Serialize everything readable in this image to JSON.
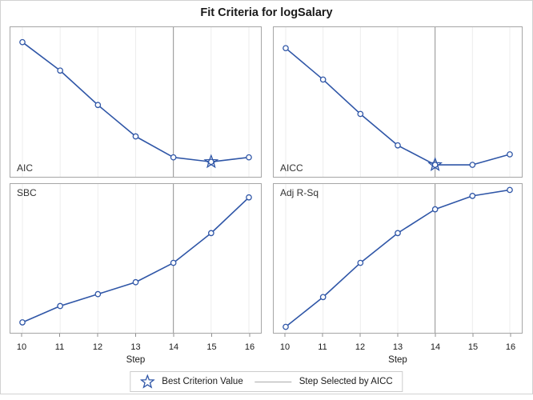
{
  "title": "Fit Criteria for logSalary",
  "colors": {
    "series_line": "#2f56a7",
    "marker_fill": "#ffffff",
    "gridline": "#ededed",
    "reference_line": "#8f8f8f",
    "panel_border": "#a6a6a6",
    "frame_border": "#d2d2d2",
    "tick": "#8f8f8f",
    "text": "#1a1a1a",
    "panel_label_text": "#333333",
    "legend_border": "#cccccc",
    "legend_line": "#aaaaaa"
  },
  "xaxis": {
    "label": "Step",
    "ticks": [
      10,
      11,
      12,
      13,
      14,
      15,
      16
    ]
  },
  "legend": {
    "items": [
      {
        "icon": "star-icon",
        "label": "Best Criterion Value"
      },
      {
        "icon": "ref-line-icon",
        "label": "Step Selected by AICC"
      }
    ]
  },
  "chart_data": {
    "type": "line",
    "title": "Fit Criteria for logSalary",
    "xlabel": "Step",
    "x": [
      10,
      11,
      12,
      13,
      14,
      15,
      16
    ],
    "ylabel": "",
    "y_axis_note": "y axes are unlabeled in the source graphic; values are relative heights (0-1, fraction of panel height from bottom) read from the plot",
    "ylim": [
      0,
      1
    ],
    "grid": "vertical-only",
    "reference_line_x": 14,
    "reference_line_meaning": "Step Selected by AICC",
    "panels": [
      {
        "name": "AIC",
        "label_position": "bottom-left",
        "values": [
          0.9,
          0.71,
          0.48,
          0.27,
          0.13,
          0.1,
          0.13
        ],
        "best_step": 15
      },
      {
        "name": "AICC",
        "label_position": "bottom-left",
        "values": [
          0.86,
          0.65,
          0.42,
          0.21,
          0.08,
          0.08,
          0.15
        ],
        "best_step": 14
      },
      {
        "name": "SBC",
        "label_position": "top-left",
        "values": [
          0.07,
          0.18,
          0.26,
          0.34,
          0.47,
          0.67,
          0.91
        ],
        "best_step": null
      },
      {
        "name": "Adj R-Sq",
        "label_position": "top-left",
        "values": [
          0.04,
          0.24,
          0.47,
          0.67,
          0.83,
          0.92,
          0.96
        ],
        "best_step": null
      }
    ]
  }
}
